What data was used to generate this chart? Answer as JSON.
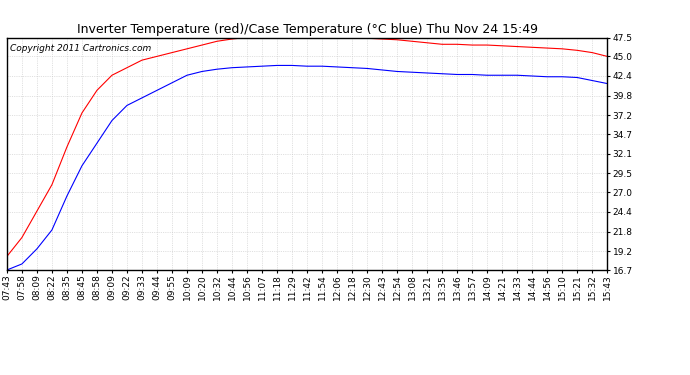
{
  "title": "Inverter Temperature (red)/Case Temperature (°C blue) Thu Nov 24 15:49",
  "copyright": "Copyright 2011 Cartronics.com",
  "yticks": [
    16.7,
    19.2,
    21.8,
    24.4,
    27.0,
    29.5,
    32.1,
    34.7,
    37.2,
    39.8,
    42.4,
    45.0,
    47.5
  ],
  "ylim": [
    16.7,
    47.5
  ],
  "xtick_labels": [
    "07:43",
    "07:58",
    "08:09",
    "08:22",
    "08:35",
    "08:45",
    "08:58",
    "09:09",
    "09:22",
    "09:33",
    "09:44",
    "09:55",
    "10:09",
    "10:20",
    "10:32",
    "10:44",
    "10:56",
    "11:07",
    "11:18",
    "11:29",
    "11:42",
    "11:54",
    "12:06",
    "12:18",
    "12:30",
    "12:43",
    "12:54",
    "13:08",
    "13:21",
    "13:35",
    "13:46",
    "13:57",
    "14:09",
    "14:21",
    "14:33",
    "14:44",
    "14:56",
    "15:10",
    "15:21",
    "15:32",
    "15:43"
  ],
  "red_data": [
    18.5,
    21.0,
    24.5,
    28.0,
    33.0,
    37.5,
    40.5,
    42.5,
    43.5,
    44.5,
    45.0,
    45.5,
    46.0,
    46.5,
    47.0,
    47.3,
    47.5,
    47.6,
    47.6,
    47.6,
    47.5,
    47.5,
    47.5,
    47.4,
    47.4,
    47.3,
    47.2,
    47.0,
    46.8,
    46.6,
    46.6,
    46.5,
    46.5,
    46.4,
    46.3,
    46.2,
    46.1,
    46.0,
    45.8,
    45.5,
    45.0
  ],
  "blue_data": [
    16.7,
    17.5,
    19.5,
    22.0,
    26.5,
    30.5,
    33.5,
    36.5,
    38.5,
    39.5,
    40.5,
    41.5,
    42.5,
    43.0,
    43.3,
    43.5,
    43.6,
    43.7,
    43.8,
    43.8,
    43.7,
    43.7,
    43.6,
    43.5,
    43.4,
    43.2,
    43.0,
    42.9,
    42.8,
    42.7,
    42.6,
    42.6,
    42.5,
    42.5,
    42.5,
    42.4,
    42.3,
    42.3,
    42.2,
    41.8,
    41.4
  ],
  "line_color_red": "#ff0000",
  "line_color_blue": "#0000ff",
  "bg_color": "#ffffff",
  "plot_bg_color": "#ffffff",
  "grid_color": "#c8c8c8",
  "title_fontsize": 9,
  "copyright_fontsize": 6.5,
  "tick_fontsize": 6.5,
  "figsize": [
    6.9,
    3.75
  ],
  "dpi": 100
}
